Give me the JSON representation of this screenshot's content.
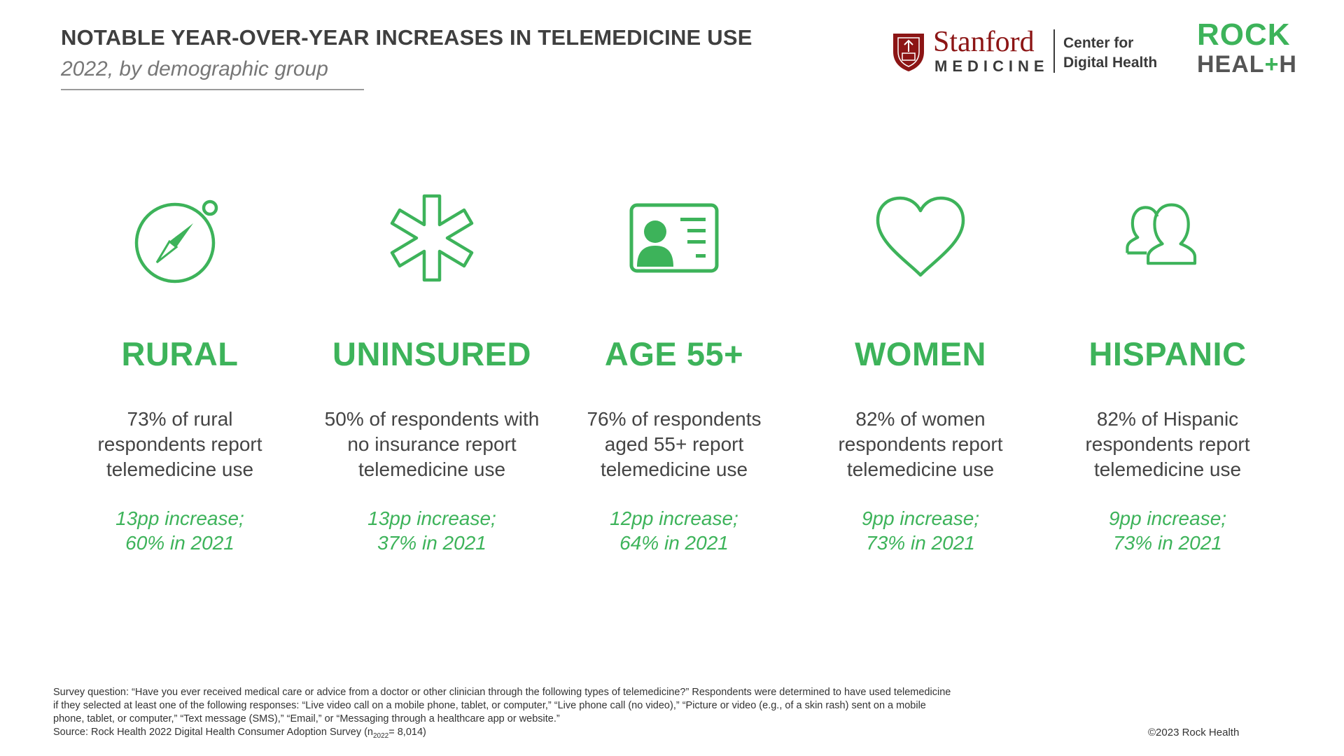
{
  "header": {
    "title": "NOTABLE YEAR-OVER-YEAR INCREASES IN TELEMEDICINE USE",
    "subtitle": "2022, by demographic group"
  },
  "logos": {
    "stanford_word": "Stanford",
    "medicine_word": "MEDICINE",
    "center_line1": "Center for",
    "center_line2": "Digital Health",
    "rock": "ROCK",
    "health_prefix": "HEAL",
    "health_plus": "+",
    "health_suffix": "H"
  },
  "colors": {
    "accent_green": "#3db35a",
    "stanford_red": "#8c1515",
    "text_dark": "#3f3f3f"
  },
  "groups": [
    {
      "icon": "compass-icon",
      "label": "RURAL",
      "description": "73% of rural respondents report telemedicine use",
      "change_line1": "13pp increase;",
      "change_line2": "60% in 2021"
    },
    {
      "icon": "asterisk-icon",
      "label": "UNINSURED",
      "description": "50% of respondents with no insurance report telemedicine use",
      "change_line1": "13pp increase;",
      "change_line2": "37% in 2021"
    },
    {
      "icon": "id-card-icon",
      "label": "AGE 55+",
      "description": "76% of respondents aged 55+ report telemedicine use",
      "change_line1": "12pp increase;",
      "change_line2": "64% in 2021"
    },
    {
      "icon": "heart-icon",
      "label": "WOMEN",
      "description": "82% of women respondents report telemedicine use",
      "change_line1": "9pp increase;",
      "change_line2": "73% in 2021"
    },
    {
      "icon": "people-icon",
      "label": "HISPANIC",
      "description": "82% of Hispanic respondents report telemedicine use",
      "change_line1": "9pp increase;",
      "change_line2": "73% in 2021"
    }
  ],
  "footnote": {
    "line1": "Survey question: “Have you ever received medical care or advice from a doctor or other clinician through the following types of telemedicine?” Respondents were determined to have used telemedicine",
    "line2": "if they selected at least one of the following responses: “Live video call on a mobile phone, tablet, or computer,” “Live phone call (no video),” “Picture or video (e.g., of a skin rash) sent on a mobile",
    "line3": "phone, tablet, or computer,” “Text message (SMS),” “Email,” or “Messaging through a healthcare app or website.”",
    "source_prefix": "Source: Rock Health 2022 Digital Health Consumer Adoption Survey  (n",
    "source_sub": "2022",
    "source_suffix": "= 8,014)"
  },
  "copyright": "©2023 Rock Health"
}
